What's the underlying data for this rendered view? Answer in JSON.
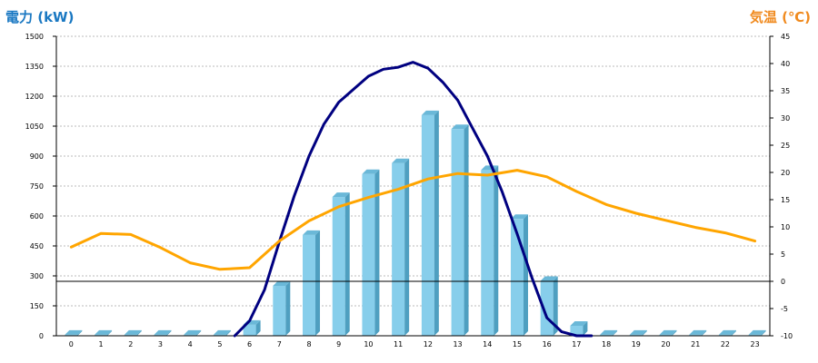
{
  "chart_data": {
    "type": "bar",
    "title": "",
    "left_axis_label": "電力 (kW)",
    "right_axis_label": "気温 (℃)",
    "categories": [
      "0",
      "1",
      "2",
      "3",
      "4",
      "5",
      "6",
      "7",
      "8",
      "9",
      "10",
      "11",
      "12",
      "13",
      "14",
      "15",
      "16",
      "17",
      "18",
      "19",
      "20",
      "21",
      "22",
      "23"
    ],
    "left_ticks": [
      "0",
      "150",
      "300",
      "450",
      "600",
      "750",
      "900",
      "1050",
      "1200",
      "1350",
      "1500"
    ],
    "right_ticks": [
      "-10",
      "-5",
      "0",
      "5",
      "10",
      "15",
      "20",
      "25",
      "30",
      "35",
      "40",
      "45"
    ],
    "ylim_left": [
      0,
      1500
    ],
    "ylim_right": [
      -10,
      45
    ],
    "grid": true,
    "series": [
      {
        "kind": "bar",
        "axis": "left",
        "color": "#87ceeb",
        "values": [
          5,
          5,
          5,
          5,
          5,
          5,
          55,
          250,
          505,
          695,
          810,
          865,
          1105,
          1035,
          830,
          585,
          275,
          50,
          5,
          5,
          5,
          5,
          5,
          5
        ]
      },
      {
        "kind": "line",
        "axis": "left",
        "color": "#000080",
        "x": [
          5.5,
          6,
          6.5,
          7,
          7.5,
          8,
          8.5,
          9,
          9.5,
          10,
          10.5,
          11,
          11.5,
          12,
          12.5,
          13,
          13.5,
          14,
          14.5,
          15,
          15.5,
          16,
          16.5,
          17,
          17.5
        ],
        "values": [
          0,
          75,
          230,
          470,
          700,
          900,
          1060,
          1170,
          1235,
          1300,
          1335,
          1345,
          1370,
          1340,
          1270,
          1180,
          1040,
          900,
          720,
          510,
          290,
          90,
          20,
          0,
          0
        ]
      },
      {
        "kind": "line",
        "axis": "right",
        "color": "#ffa500",
        "x": [
          0,
          1,
          2,
          3,
          4,
          5,
          6,
          7,
          8,
          9,
          10,
          11,
          12,
          13,
          14,
          15,
          16,
          17,
          18,
          19,
          20,
          21,
          22,
          23
        ],
        "values": [
          6.3,
          8.8,
          8.6,
          6.2,
          3.4,
          2.2,
          2.5,
          7.4,
          11.1,
          13.7,
          15.4,
          16.9,
          18.8,
          19.8,
          19.5,
          20.4,
          19.2,
          16.5,
          14.1,
          12.5,
          11.2,
          9.9,
          8.9,
          7.4
        ]
      }
    ]
  }
}
